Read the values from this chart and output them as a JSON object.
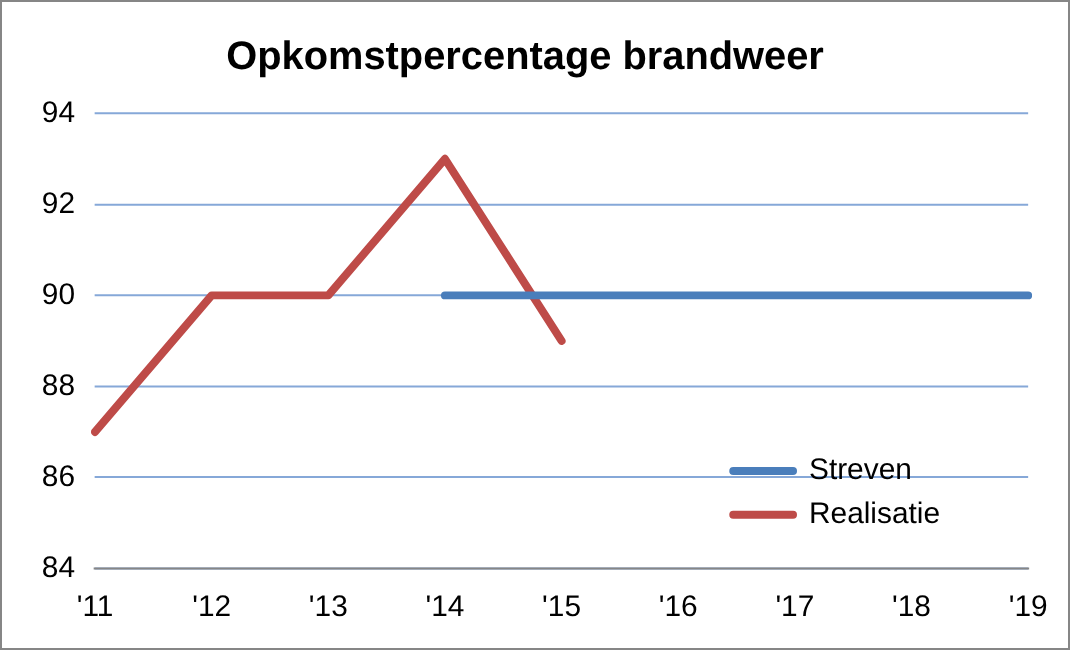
{
  "chart_data": {
    "type": "line",
    "title": "Opkomstpercentage brandweer",
    "categories": [
      "'11",
      "'12",
      "'13",
      "'14",
      "'15",
      "'16",
      "'17",
      "'18",
      "'19"
    ],
    "series": [
      {
        "name": "Streven",
        "color": "#4a7ebb",
        "values": [
          null,
          null,
          null,
          90,
          90,
          90,
          90,
          90,
          90
        ]
      },
      {
        "name": "Realisatie",
        "color": "#be4b48",
        "values": [
          87,
          90,
          90,
          93,
          89,
          null,
          null,
          null,
          null
        ]
      }
    ],
    "ylim": [
      84,
      94
    ],
    "yticks": [
      84,
      86,
      88,
      90,
      92,
      94
    ],
    "grid": "y",
    "legend": "bottom right",
    "marker": "none",
    "line_style": "solid"
  }
}
